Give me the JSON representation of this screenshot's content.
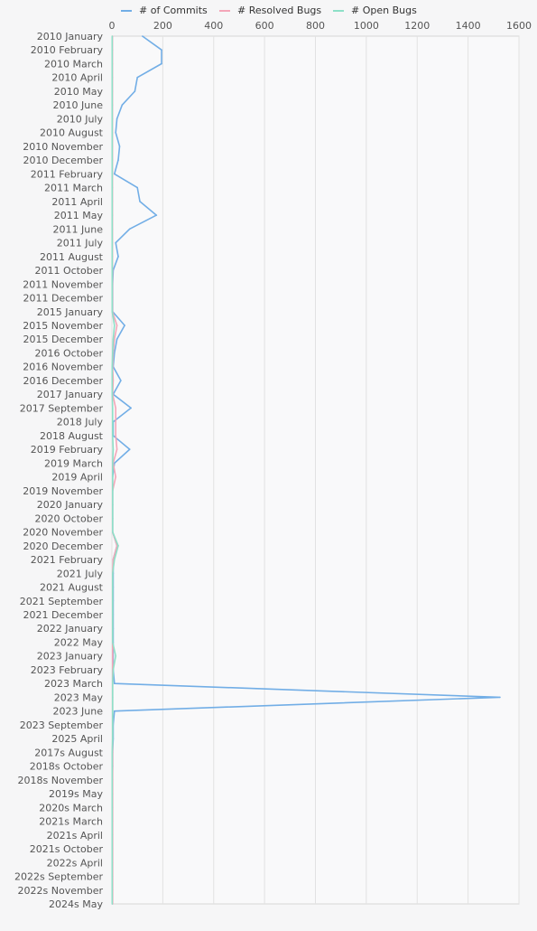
{
  "chart_data": {
    "type": "line",
    "orientation": "vertical-category-axis",
    "title": "",
    "xlabel": "",
    "ylabel": "",
    "xlim": [
      0,
      1600
    ],
    "x_ticks": [
      0,
      200,
      400,
      600,
      800,
      1000,
      1200,
      1400,
      1600
    ],
    "grid": "vertical",
    "legend_position": "top",
    "categories": [
      "2010 January",
      "2010 February",
      "2010 March",
      "2010 April",
      "2010 May",
      "2010 June",
      "2010 July",
      "2010 August",
      "2010 November",
      "2010 December",
      "2011 February",
      "2011 March",
      "2011 April",
      "2011 May",
      "2011 June",
      "2011 July",
      "2011 August",
      "2011 October",
      "2011 November",
      "2011 December",
      "2015 January",
      "2015 November",
      "2015 December",
      "2016 October",
      "2016 November",
      "2016 December",
      "2017 January",
      "2017 September",
      "2018 July",
      "2018 August",
      "2019 February",
      "2019 March",
      "2019 April",
      "2019 November",
      "2020 January",
      "2020 October",
      "2020 November",
      "2020 December",
      "2021 February",
      "2021 July",
      "2021 August",
      "2021 September",
      "2021 December",
      "2022 January",
      "2022 May",
      "2023 January",
      "2023 February",
      "2023 March",
      "2023 May",
      "2023 June",
      "2023 September",
      "2025 April",
      "2017s August",
      "2018s October",
      "2018s November",
      "2019s May",
      "2020s March",
      "2021s March",
      "2021s April",
      "2021s October",
      "2022s April",
      "2022s September",
      "2022s November",
      "2024s May"
    ],
    "series": [
      {
        "name": "# of Commits",
        "color": "#72aee6",
        "values": [
          120,
          195,
          195,
          100,
          90,
          40,
          20,
          15,
          30,
          25,
          10,
          100,
          110,
          175,
          70,
          15,
          25,
          5,
          3,
          3,
          3,
          50,
          20,
          10,
          5,
          35,
          5,
          75,
          5,
          5,
          70,
          10,
          3,
          3,
          3,
          3,
          3,
          20,
          5,
          5,
          5,
          5,
          5,
          5,
          5,
          5,
          5,
          10,
          1525,
          10,
          5,
          5,
          3,
          3,
          2,
          2,
          2,
          2,
          2,
          2,
          2,
          2,
          2,
          2
        ]
      },
      {
        "name": "# Resolved Bugs",
        "color": "#f4a6b8",
        "values": [
          2,
          2,
          2,
          2,
          2,
          2,
          2,
          2,
          2,
          2,
          2,
          2,
          2,
          2,
          2,
          2,
          2,
          2,
          2,
          2,
          2,
          20,
          10,
          5,
          3,
          5,
          3,
          15,
          15,
          15,
          20,
          5,
          15,
          3,
          3,
          3,
          3,
          20,
          5,
          3,
          3,
          3,
          3,
          3,
          3,
          3,
          3,
          3,
          3,
          3,
          3,
          3,
          3,
          3,
          3,
          3,
          3,
          3,
          3,
          3,
          3,
          3,
          3,
          3
        ]
      },
      {
        "name": "# Open Bugs",
        "color": "#8ee0c8",
        "values": [
          1,
          1,
          1,
          1,
          1,
          1,
          1,
          1,
          1,
          1,
          1,
          1,
          1,
          1,
          1,
          1,
          1,
          1,
          1,
          1,
          1,
          10,
          5,
          3,
          1,
          1,
          1,
          3,
          3,
          3,
          5,
          3,
          3,
          3,
          3,
          3,
          3,
          25,
          10,
          3,
          3,
          3,
          3,
          3,
          3,
          15,
          5,
          3,
          3,
          3,
          3,
          3,
          1,
          1,
          1,
          1,
          1,
          1,
          1,
          1,
          1,
          1,
          1,
          1
        ]
      }
    ]
  }
}
